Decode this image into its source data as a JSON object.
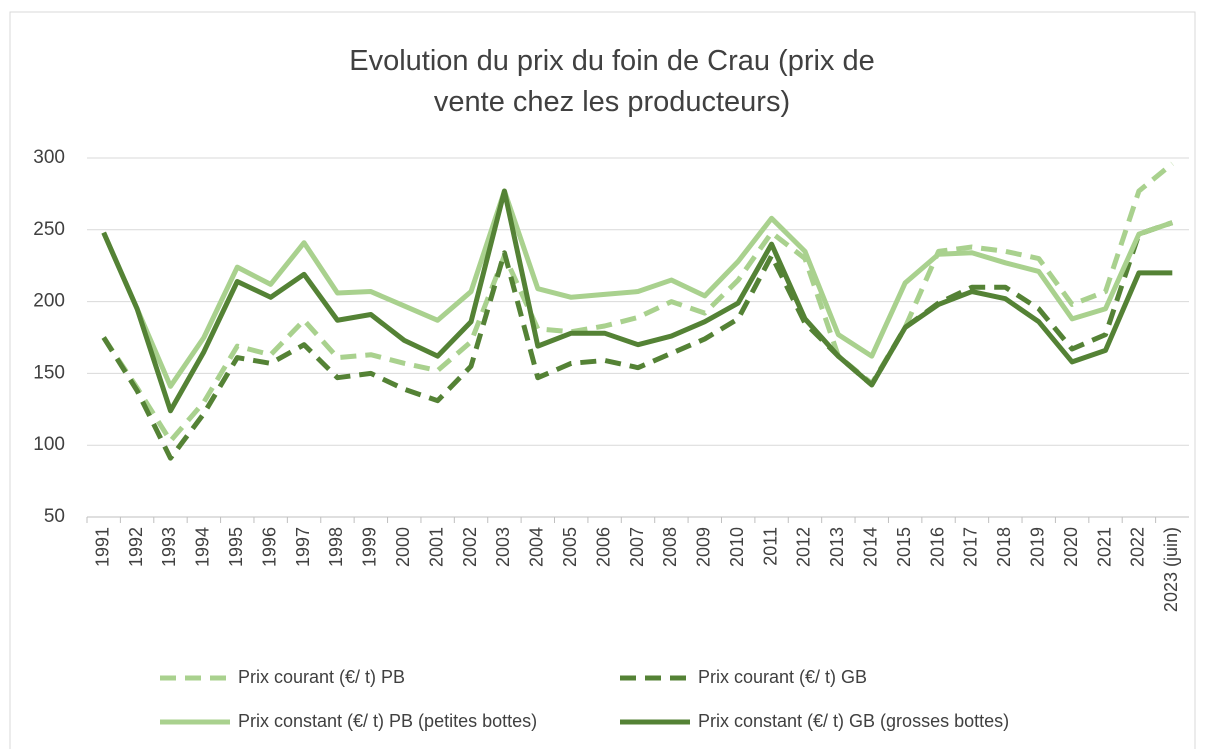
{
  "chart_data": {
    "type": "line",
    "title": "Evolution du prix du foin de Crau (prix de vente chez les producteurs)",
    "categories": [
      "1991",
      "1992",
      "1993",
      "1994",
      "1995",
      "1996",
      "1997",
      "1998",
      "1999",
      "2000",
      "2001",
      "2002",
      "2003",
      "2004",
      "2005",
      "2006",
      "2007",
      "2008",
      "2009",
      "2010",
      "2011",
      "2012",
      "2013",
      "2014",
      "2015",
      "2016",
      "2017",
      "2018",
      "2019",
      "2020",
      "2021",
      "2022",
      "2023 (juin)"
    ],
    "series": [
      {
        "name": "Prix courant (€/ t) PB",
        "color": "#a9d18e",
        "dash": true,
        "values": [
          175,
          140,
          103,
          130,
          169,
          163,
          187,
          161,
          163,
          157,
          152,
          172,
          232,
          181,
          179,
          183,
          189,
          200,
          192,
          215,
          248,
          230,
          162,
          143,
          182,
          235,
          238,
          235,
          230,
          198,
          207,
          277,
          296
        ]
      },
      {
        "name": "Prix courant (€/ t) GB",
        "color": "#548235",
        "dash": true,
        "values": [
          175,
          138,
          91,
          122,
          161,
          157,
          170,
          147,
          150,
          139,
          131,
          155,
          234,
          147,
          157,
          159,
          154,
          164,
          174,
          188,
          232,
          185,
          162,
          142,
          182,
          199,
          210,
          210,
          195,
          167,
          177,
          247,
          255
        ]
      },
      {
        "name": "Prix constant (€/ t) PB (petites bottes)",
        "color": "#a9d18e",
        "dash": false,
        "values": [
          248,
          195,
          141,
          175,
          224,
          212,
          241,
          206,
          207,
          197,
          187,
          207,
          277,
          209,
          203,
          205,
          207,
          215,
          204,
          228,
          258,
          235,
          177,
          162,
          213,
          233,
          234,
          227,
          221,
          188,
          195,
          247,
          255
        ]
      },
      {
        "name": "Prix constant (€/ t) GB (grosses bottes)",
        "color": "#548235",
        "dash": false,
        "values": [
          248,
          195,
          124,
          165,
          214,
          203,
          219,
          187,
          191,
          173,
          162,
          186,
          277,
          169,
          178,
          178,
          170,
          176,
          186,
          199,
          240,
          188,
          162,
          142,
          182,
          198,
          207,
          202,
          186,
          158,
          166,
          220,
          220
        ]
      }
    ],
    "ylim": [
      50,
      300
    ],
    "yticks": [
      50,
      100,
      150,
      200,
      250,
      300
    ],
    "grid": true,
    "legend": "bottom"
  }
}
